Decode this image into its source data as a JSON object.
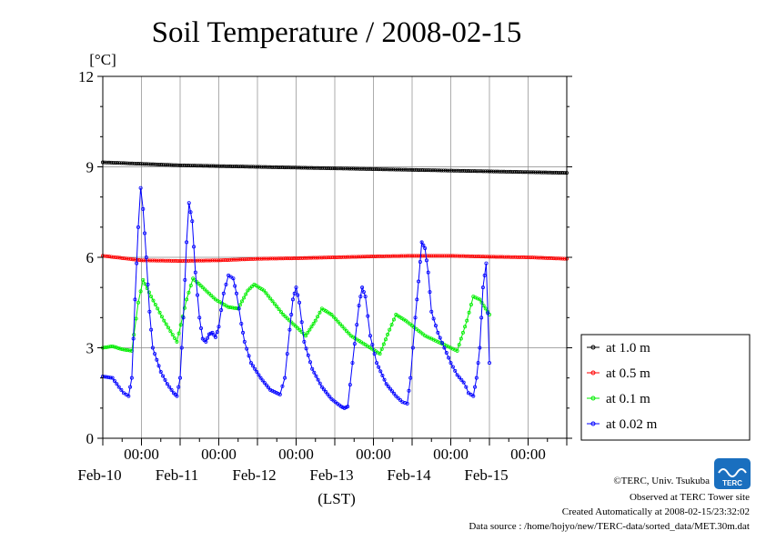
{
  "page": {
    "title": "Soil Temperature / 2008-02-15",
    "credits": [
      "©TERC, Univ. Tsukuba",
      "Observed at TERC Tower site",
      "Created Automatically at 2008-02-15/23:32:02",
      "Data source : /home/hojyo/new/TERC-data/sorted_data/MET.30m.dat"
    ],
    "logo_text": "TERC"
  },
  "chart_data": {
    "type": "line",
    "title": "Soil Temperature / 2008-02-15",
    "ylabel": "[°C]",
    "xlabel": "(LST)",
    "ylim": [
      0,
      12
    ],
    "yticks": [
      0,
      3,
      6,
      9,
      12
    ],
    "xlim": [
      "2008-02-09 12:00",
      "2008-02-15 12:00"
    ],
    "x_major_ticks": [
      {
        "time": "2008-02-10 00:00",
        "label": "00:00",
        "date_label": "Feb-10"
      },
      {
        "time": "2008-02-11 00:00",
        "label": "00:00",
        "date_label": "Feb-11"
      },
      {
        "time": "2008-02-12 00:00",
        "label": "00:00",
        "date_label": "Feb-12"
      },
      {
        "time": "2008-02-13 00:00",
        "label": "00:00",
        "date_label": "Feb-13"
      },
      {
        "time": "2008-02-14 00:00",
        "label": "00:00",
        "date_label": "Feb-14"
      },
      {
        "time": "2008-02-15 00:00",
        "label": "00:00",
        "date_label": "Feb-15"
      }
    ],
    "grid": true,
    "legend_position": "right",
    "series": [
      {
        "name": "at 1.0 m",
        "color": "#000000",
        "points": [
          [
            "2008-02-09 12:00",
            9.15
          ],
          [
            "2008-02-10 12:00",
            9.05
          ],
          [
            "2008-02-11 12:00",
            9.0
          ],
          [
            "2008-02-12 12:00",
            8.95
          ],
          [
            "2008-02-13 12:00",
            8.9
          ],
          [
            "2008-02-14 12:00",
            8.85
          ],
          [
            "2008-02-15 12:00",
            8.8
          ]
        ]
      },
      {
        "name": "at 0.5 m",
        "color": "#ff0000",
        "points": [
          [
            "2008-02-09 12:00",
            6.05
          ],
          [
            "2008-02-10 00:00",
            5.9
          ],
          [
            "2008-02-10 12:00",
            5.88
          ],
          [
            "2008-02-11 00:00",
            5.9
          ],
          [
            "2008-02-11 12:00",
            5.95
          ],
          [
            "2008-02-12 00:00",
            5.97
          ],
          [
            "2008-02-12 12:00",
            6.0
          ],
          [
            "2008-02-13 00:00",
            6.03
          ],
          [
            "2008-02-13 12:00",
            6.05
          ],
          [
            "2008-02-14 00:00",
            6.05
          ],
          [
            "2008-02-14 12:00",
            6.02
          ],
          [
            "2008-02-15 00:00",
            6.0
          ],
          [
            "2008-02-15 12:00",
            5.95
          ]
        ]
      },
      {
        "name": "at 0.1 m",
        "color": "#00ee00",
        "points": [
          [
            "2008-02-09 12:00",
            3.0
          ],
          [
            "2008-02-09 15:00",
            3.05
          ],
          [
            "2008-02-09 18:00",
            2.95
          ],
          [
            "2008-02-09 21:00",
            2.9
          ],
          [
            "2008-02-09 23:00",
            4.5
          ],
          [
            "2008-02-10 00:30",
            5.25
          ],
          [
            "2008-02-10 03:00",
            4.7
          ],
          [
            "2008-02-10 07:00",
            3.9
          ],
          [
            "2008-02-10 11:00",
            3.2
          ],
          [
            "2008-02-10 14:00",
            4.6
          ],
          [
            "2008-02-10 16:00",
            5.3
          ],
          [
            "2008-02-10 19:00",
            5.0
          ],
          [
            "2008-02-10 23:00",
            4.6
          ],
          [
            "2008-02-11 03:00",
            4.35
          ],
          [
            "2008-02-11 06:00",
            4.3
          ],
          [
            "2008-02-11 09:00",
            4.9
          ],
          [
            "2008-02-11 11:00",
            5.1
          ],
          [
            "2008-02-11 14:00",
            4.9
          ],
          [
            "2008-02-11 20:00",
            4.1
          ],
          [
            "2008-02-12 03:00",
            3.4
          ],
          [
            "2008-02-12 06:00",
            3.9
          ],
          [
            "2008-02-12 08:00",
            4.3
          ],
          [
            "2008-02-12 11:00",
            4.1
          ],
          [
            "2008-02-12 17:00",
            3.4
          ],
          [
            "2008-02-13 02:00",
            2.8
          ],
          [
            "2008-02-13 05:00",
            3.6
          ],
          [
            "2008-02-13 07:00",
            4.1
          ],
          [
            "2008-02-13 10:00",
            3.9
          ],
          [
            "2008-02-13 16:00",
            3.4
          ],
          [
            "2008-02-14 02:00",
            2.9
          ],
          [
            "2008-02-14 05:00",
            3.9
          ],
          [
            "2008-02-14 07:00",
            4.7
          ],
          [
            "2008-02-14 09:00",
            4.6
          ],
          [
            "2008-02-14 12:00",
            4.1
          ]
        ]
      },
      {
        "name": "at 0.02 m",
        "color": "#0000ff",
        "points": [
          [
            "2008-02-09 12:00",
            2.05
          ],
          [
            "2008-02-09 15:00",
            2.0
          ],
          [
            "2008-02-09 17:00",
            1.7
          ],
          [
            "2008-02-09 18:30",
            1.5
          ],
          [
            "2008-02-09 20:00",
            1.4
          ],
          [
            "2008-02-09 21:00",
            2.0
          ],
          [
            "2008-02-09 22:00",
            4.6
          ],
          [
            "2008-02-09 23:00",
            7.0
          ],
          [
            "2008-02-09 23:45",
            8.3
          ],
          [
            "2008-02-10 00:30",
            7.6
          ],
          [
            "2008-02-10 01:30",
            6.0
          ],
          [
            "2008-02-10 02:30",
            4.2
          ],
          [
            "2008-02-10 03:30",
            3.0
          ],
          [
            "2008-02-10 06:00",
            2.2
          ],
          [
            "2008-02-10 08:00",
            1.8
          ],
          [
            "2008-02-10 10:00",
            1.5
          ],
          [
            "2008-02-10 11:00",
            1.4
          ],
          [
            "2008-02-10 12:00",
            2.0
          ],
          [
            "2008-02-10 13:00",
            4.0
          ],
          [
            "2008-02-10 14:00",
            6.5
          ],
          [
            "2008-02-10 14:45",
            7.8
          ],
          [
            "2008-02-10 15:45",
            7.2
          ],
          [
            "2008-02-10 16:45",
            5.5
          ],
          [
            "2008-02-10 18:00",
            4.0
          ],
          [
            "2008-02-10 19:00",
            3.3
          ],
          [
            "2008-02-10 20:00",
            3.2
          ],
          [
            "2008-02-10 21:00",
            3.45
          ],
          [
            "2008-02-10 22:00",
            3.5
          ],
          [
            "2008-02-10 23:00",
            3.35
          ],
          [
            "2008-02-11 00:00",
            3.7
          ],
          [
            "2008-02-11 01:30",
            4.8
          ],
          [
            "2008-02-11 03:00",
            5.4
          ],
          [
            "2008-02-11 04:30",
            5.3
          ],
          [
            "2008-02-11 05:30",
            4.8
          ],
          [
            "2008-02-11 07:00",
            3.8
          ],
          [
            "2008-02-11 08:00",
            3.2
          ],
          [
            "2008-02-11 10:00",
            2.5
          ],
          [
            "2008-02-11 13:00",
            2.0
          ],
          [
            "2008-02-11 16:00",
            1.6
          ],
          [
            "2008-02-11 19:00",
            1.45
          ],
          [
            "2008-02-11 20:30",
            2.0
          ],
          [
            "2008-02-11 22:00",
            3.6
          ],
          [
            "2008-02-11 23:00",
            4.6
          ],
          [
            "2008-02-12 00:00",
            5.0
          ],
          [
            "2008-02-12 01:00",
            4.5
          ],
          [
            "2008-02-12 02:30",
            3.2
          ],
          [
            "2008-02-12 05:00",
            2.3
          ],
          [
            "2008-02-12 08:00",
            1.7
          ],
          [
            "2008-02-12 11:00",
            1.3
          ],
          [
            "2008-02-12 14:00",
            1.05
          ],
          [
            "2008-02-12 15:00",
            1.0
          ],
          [
            "2008-02-12 16:00",
            1.05
          ],
          [
            "2008-02-12 17:30",
            2.5
          ],
          [
            "2008-02-12 19:30",
            4.4
          ],
          [
            "2008-02-12 20:30",
            5.0
          ],
          [
            "2008-02-12 21:30",
            4.7
          ],
          [
            "2008-02-12 23:00",
            3.4
          ],
          [
            "2008-02-13 01:00",
            2.5
          ],
          [
            "2008-02-13 04:00",
            1.8
          ],
          [
            "2008-02-13 07:00",
            1.4
          ],
          [
            "2008-02-13 09:00",
            1.2
          ],
          [
            "2008-02-13 10:30",
            1.15
          ],
          [
            "2008-02-13 11:30",
            2.0
          ],
          [
            "2008-02-13 13:00",
            4.0
          ],
          [
            "2008-02-13 14:00",
            5.2
          ],
          [
            "2008-02-13 15:00",
            6.5
          ],
          [
            "2008-02-13 16:00",
            6.3
          ],
          [
            "2008-02-13 17:00",
            5.5
          ],
          [
            "2008-02-13 18:00",
            4.2
          ],
          [
            "2008-02-13 20:00",
            3.5
          ],
          [
            "2008-02-13 22:00",
            3.0
          ],
          [
            "2008-02-14 00:00",
            2.5
          ],
          [
            "2008-02-14 02:00",
            2.1
          ],
          [
            "2008-02-14 04:00",
            1.85
          ],
          [
            "2008-02-14 04:45",
            1.7
          ],
          [
            "2008-02-14 05:30",
            1.5
          ],
          [
            "2008-02-14 07:00",
            1.4
          ],
          [
            "2008-02-14 08:00",
            2.0
          ],
          [
            "2008-02-14 09:00",
            3.0
          ],
          [
            "2008-02-14 10:00",
            5.0
          ],
          [
            "2008-02-14 11:00",
            5.8
          ],
          [
            "2008-02-14 12:00",
            2.5
          ]
        ]
      }
    ]
  }
}
